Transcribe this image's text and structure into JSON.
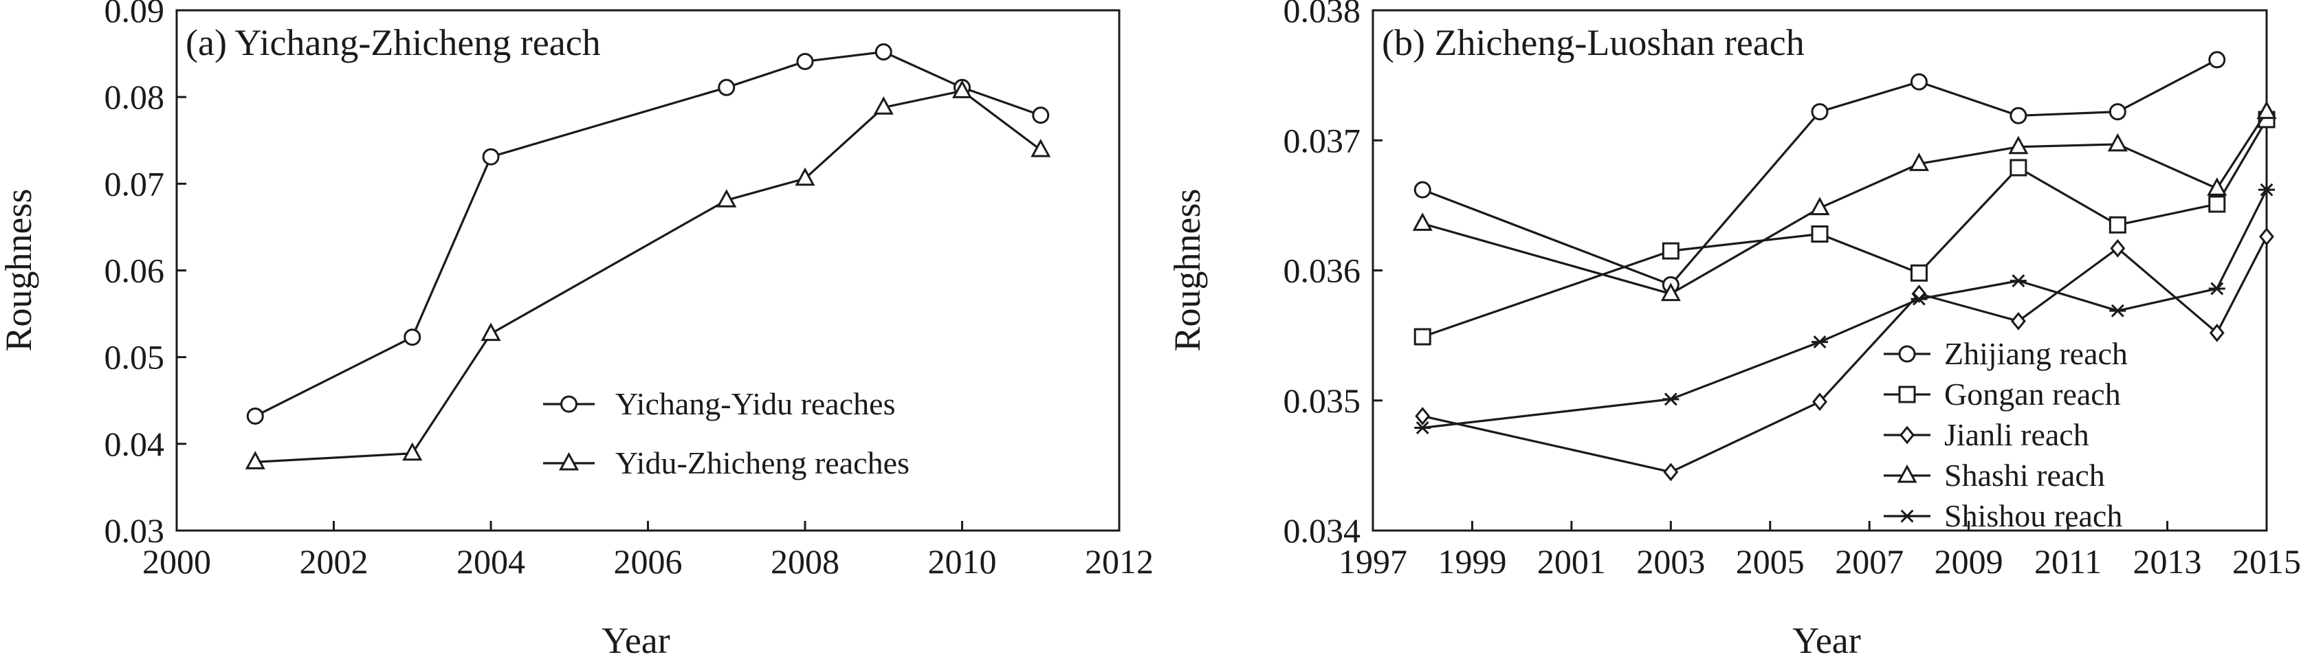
{
  "chart_data": [
    {
      "type": "line",
      "title": "(a) Yichang-Zhicheng reach",
      "xlabel": "Year",
      "ylabel": "Roughness",
      "xlim": [
        2000,
        2012
      ],
      "ylim": [
        0.03,
        0.09
      ],
      "xticks": [
        2000,
        2002,
        2004,
        2006,
        2008,
        2010,
        2012
      ],
      "xtick_labels": [
        "2000",
        "2002",
        "2004",
        "2006",
        "2008",
        "2010",
        "2012"
      ],
      "yticks": [
        0.03,
        0.04,
        0.05,
        0.06,
        0.07,
        0.08,
        0.09
      ],
      "ytick_labels": [
        "0.03",
        "0.04",
        "0.05",
        "0.06",
        "0.07",
        "0.08",
        "0.09"
      ],
      "legend_position": "lower-right",
      "grid": false,
      "series": [
        {
          "name": "Yichang-Yidu reaches",
          "marker": "circle",
          "x": [
            2001,
            2003,
            2004,
            2007,
            2008,
            2009,
            2010,
            2011
          ],
          "y": [
            0.0432,
            0.0523,
            0.0731,
            0.0811,
            0.0841,
            0.0852,
            0.0811,
            0.0779
          ]
        },
        {
          "name": "Yidu-Zhicheng reaches",
          "marker": "triangle",
          "x": [
            2001,
            2003,
            2004,
            2007,
            2008,
            2009,
            2010,
            2011
          ],
          "y": [
            0.0379,
            0.0389,
            0.0527,
            0.0681,
            0.0706,
            0.0788,
            0.0807,
            0.0739
          ]
        }
      ]
    },
    {
      "type": "line",
      "title": "(b) Zhicheng-Luoshan reach",
      "xlabel": "Year",
      "ylabel": "Roughness",
      "xlim": [
        1997,
        2015
      ],
      "ylim": [
        0.034,
        0.038
      ],
      "xticks": [
        1997,
        1999,
        2001,
        2003,
        2005,
        2007,
        2009,
        2011,
        2013,
        2015
      ],
      "xtick_labels": [
        "1997",
        "1999",
        "2001",
        "2003",
        "2005",
        "2007",
        "2009",
        "2011",
        "2013",
        "2015"
      ],
      "yticks": [
        0.034,
        0.035,
        0.036,
        0.037,
        0.038
      ],
      "ytick_labels": [
        "0.034",
        "0.035",
        "0.036",
        "0.037",
        "0.038"
      ],
      "legend_position": "lower-right",
      "grid": false,
      "series": [
        {
          "name": "Zhijiang reach",
          "marker": "circle",
          "x": [
            1998,
            2003,
            2006,
            2008,
            2010,
            2012,
            2014
          ],
          "y": [
            0.03662,
            0.03589,
            0.03722,
            0.03745,
            0.03719,
            0.03722,
            0.03762
          ]
        },
        {
          "name": "Gongan reach",
          "marker": "square",
          "x": [
            1998,
            2003,
            2006,
            2008,
            2010,
            2012,
            2014,
            2015
          ],
          "y": [
            0.03549,
            0.03615,
            0.03628,
            0.03598,
            0.03679,
            0.03635,
            0.03651,
            0.03716
          ]
        },
        {
          "name": "Jianli reach",
          "marker": "diamond",
          "x": [
            1998,
            2003,
            2006,
            2008,
            2010,
            2012,
            2014,
            2015
          ],
          "y": [
            0.03488,
            0.03445,
            0.03499,
            0.03582,
            0.03561,
            0.03617,
            0.03552,
            0.03626
          ]
        },
        {
          "name": "Shashi reach",
          "marker": "triangle",
          "x": [
            1998,
            2003,
            2006,
            2008,
            2010,
            2012,
            2014,
            2015
          ],
          "y": [
            0.03636,
            0.03582,
            0.03648,
            0.03682,
            0.03695,
            0.03697,
            0.03663,
            0.03722
          ]
        },
        {
          "name": "Shishou reach",
          "marker": "asterisk",
          "x": [
            1998,
            2003,
            2006,
            2008,
            2010,
            2012,
            2014,
            2015
          ],
          "y": [
            0.03479,
            0.03501,
            0.03545,
            0.03578,
            0.03592,
            0.03569,
            0.03586,
            0.03662
          ]
        }
      ]
    }
  ]
}
